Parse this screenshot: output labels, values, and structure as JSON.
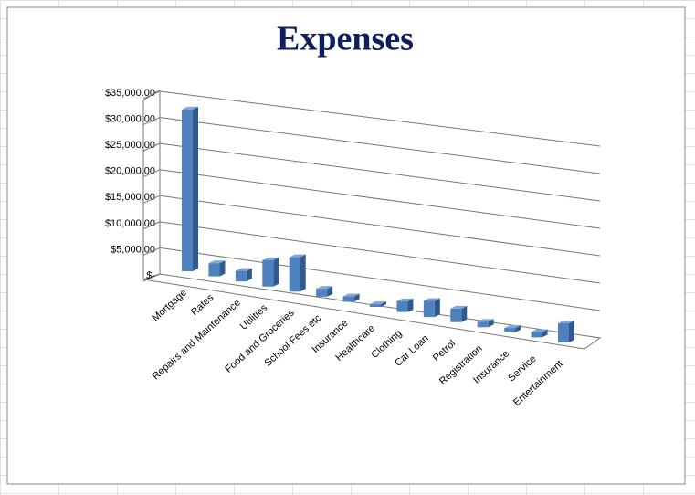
{
  "chart_data": {
    "type": "bar3d",
    "title": "Expenses",
    "categories": [
      "Mortgage",
      "Rates",
      "Repairs and Maintenance",
      "Utilities",
      "Food and Groceries",
      "School Fees etc",
      "Insurance",
      "Healthcare",
      "Clothing",
      "Car Loan",
      "Petrol",
      "Registration",
      "Insurance",
      "Service",
      "Entertainment"
    ],
    "values": [
      31000,
      2500,
      2000,
      5000,
      6500,
      1500,
      1000,
      500,
      2000,
      3000,
      2500,
      1000,
      800,
      1000,
      3500
    ],
    "color": "#4f81bd",
    "ylim": [
      0,
      35000
    ],
    "yticks": [
      {
        "value": 0,
        "label": "$-"
      },
      {
        "value": 5000,
        "label": "$5,000.00"
      },
      {
        "value": 10000,
        "label": "$10,000.00"
      },
      {
        "value": 15000,
        "label": "$15,000.00"
      },
      {
        "value": 20000,
        "label": "$20,000.00"
      },
      {
        "value": 25000,
        "label": "$25,000.00"
      },
      {
        "value": 30000,
        "label": "$30,000.00"
      },
      {
        "value": 35000,
        "label": "$35,000.00"
      }
    ],
    "grid": true
  }
}
